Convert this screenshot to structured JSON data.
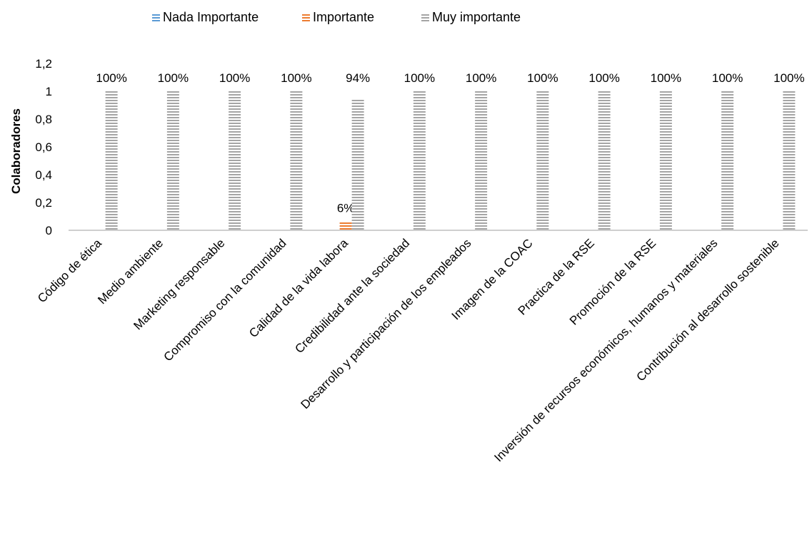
{
  "chart_data": {
    "type": "bar",
    "title": "",
    "xlabel": "",
    "ylabel": "Colaboradores",
    "ylim": [
      0,
      1.2
    ],
    "yticks": [
      {
        "value": 0,
        "label": "0"
      },
      {
        "value": 0.2,
        "label": "0,2"
      },
      {
        "value": 0.4,
        "label": "0,4"
      },
      {
        "value": 0.6,
        "label": "0,6"
      },
      {
        "value": 0.8,
        "label": "0,8"
      },
      {
        "value": 1,
        "label": "1"
      },
      {
        "value": 1.2,
        "label": "1,2"
      }
    ],
    "grid": false,
    "legend_position": "top-center",
    "categories": [
      "Código de ética",
      "Medio ambiente",
      "Marketing responsable",
      "Compromiso con la comunidad",
      "Calidad de la vida labora",
      "Credibilidad ante la sociedad",
      "Desarrollo y participación de los empleados",
      "Imagen de la COAC",
      "Practica de la RSE",
      "Promoción de la RSE",
      "Inversión de recursos económicos, humanos y materiales",
      "Contribución al desarrollo sostenible"
    ],
    "series": [
      {
        "name": "Nada Importante",
        "color": "#5b9bd5",
        "values": [
          0,
          0,
          0,
          0,
          0,
          0,
          0,
          0,
          0,
          0,
          0,
          0
        ],
        "labels": [
          "",
          "",
          "",
          "",
          "",
          "",
          "",
          "",
          "",
          "",
          "",
          ""
        ]
      },
      {
        "name": "Importante",
        "color": "#ed7d31",
        "values": [
          0,
          0,
          0,
          0,
          0.06,
          0,
          0,
          0,
          0,
          0,
          0,
          0
        ],
        "labels": [
          "",
          "",
          "",
          "",
          "6%",
          "",
          "",
          "",
          "",
          "",
          "",
          ""
        ]
      },
      {
        "name": "Muy importante",
        "color": "#a5a5a5",
        "values": [
          1,
          1,
          1,
          1,
          0.94,
          1,
          1,
          1,
          1,
          1,
          1,
          1
        ],
        "labels": [
          "100%",
          "100%",
          "100%",
          "100%",
          "94%",
          "100%",
          "100%",
          "100%",
          "100%",
          "100%",
          "100%",
          "100%"
        ]
      }
    ]
  }
}
